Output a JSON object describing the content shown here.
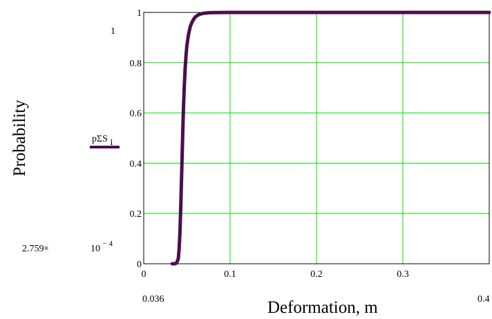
{
  "chart_data": {
    "type": "line",
    "xlabel": "Deformation, m",
    "ylabel": "Probability",
    "xlim": [
      0,
      0.4
    ],
    "ylim": [
      0,
      1
    ],
    "grid": true,
    "x_ticks": [
      "0",
      "0.1",
      "0.2",
      "0.3"
    ],
    "y_ticks": [
      "0",
      "0.2",
      "0.4",
      "0.6",
      "0.8",
      "1"
    ],
    "x_min_label": "0.036",
    "x_max_label": "0.4",
    "y_min_label_mantissa": "2.759",
    "y_min_label_times": "×",
    "y_min_label_base": "10",
    "y_min_label_exponent": "− 4",
    "y_max_label": "1",
    "legend": {
      "text": "pΣS",
      "subscript": "i",
      "color": "#4a0f4a"
    },
    "series": [
      {
        "color": "#4a0f4a",
        "x": [
          0.033,
          0.036,
          0.038,
          0.04,
          0.041,
          0.042,
          0.043,
          0.044,
          0.045,
          0.046,
          0.047,
          0.048,
          0.049,
          0.05,
          0.052,
          0.054,
          0.056,
          0.058,
          0.06,
          0.063,
          0.066,
          0.07,
          0.075,
          0.08,
          0.09,
          0.1,
          0.15,
          0.2,
          0.3,
          0.4
        ],
        "y": [
          0.0,
          0.0,
          0.003,
          0.02,
          0.06,
          0.13,
          0.24,
          0.37,
          0.5,
          0.62,
          0.71,
          0.78,
          0.83,
          0.87,
          0.915,
          0.945,
          0.962,
          0.974,
          0.983,
          0.99,
          0.994,
          0.997,
          0.9985,
          0.9993,
          0.9998,
          1.0,
          1.0,
          1.0,
          1.0,
          1.0
        ]
      }
    ],
    "grid_color": "#00e000",
    "axis_color": "#000000"
  }
}
